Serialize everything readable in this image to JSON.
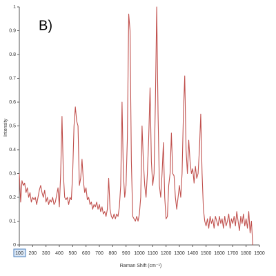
{
  "chart_data": {
    "type": "line",
    "annotation": "B)",
    "x_label": "Raman Shift (cm⁻¹)",
    "y_label": "Intensity",
    "x": [
      100,
      110,
      120,
      130,
      140,
      150,
      160,
      170,
      180,
      190,
      200,
      210,
      220,
      230,
      240,
      250,
      260,
      270,
      280,
      290,
      300,
      310,
      320,
      330,
      340,
      350,
      360,
      370,
      380,
      390,
      400,
      410,
      420,
      430,
      440,
      450,
      460,
      470,
      480,
      490,
      500,
      510,
      520,
      530,
      540,
      550,
      560,
      570,
      580,
      590,
      600,
      610,
      620,
      630,
      640,
      650,
      660,
      670,
      680,
      690,
      700,
      710,
      720,
      730,
      740,
      750,
      760,
      770,
      780,
      790,
      800,
      810,
      820,
      830,
      840,
      850,
      860,
      870,
      880,
      890,
      900,
      910,
      920,
      930,
      940,
      950,
      960,
      970,
      980,
      990,
      1000,
      1010,
      1020,
      1030,
      1040,
      1050,
      1060,
      1070,
      1080,
      1090,
      1100,
      1110,
      1120,
      1130,
      1140,
      1150,
      1160,
      1170,
      1180,
      1190,
      1200,
      1210,
      1220,
      1230,
      1240,
      1250,
      1260,
      1270,
      1280,
      1290,
      1300,
      1310,
      1320,
      1330,
      1340,
      1350,
      1360,
      1370,
      1380,
      1390,
      1400,
      1410,
      1420,
      1430,
      1440,
      1450,
      1460,
      1470,
      1480,
      1490,
      1500,
      1510,
      1520,
      1530,
      1540,
      1550,
      1560,
      1570,
      1580,
      1590,
      1600,
      1610,
      1620,
      1630,
      1640,
      1650,
      1660,
      1670,
      1680,
      1690,
      1700,
      1710,
      1720,
      1730,
      1740,
      1750,
      1760,
      1770,
      1780,
      1790,
      1800,
      1810,
      1820,
      1830,
      1840,
      1850
    ],
    "series": [
      {
        "color": "#c0504d",
        "values": [
          0.3,
          0.18,
          0.27,
          0.25,
          0.26,
          0.22,
          0.24,
          0.2,
          0.22,
          0.18,
          0.2,
          0.19,
          0.2,
          0.17,
          0.2,
          0.23,
          0.25,
          0.22,
          0.2,
          0.23,
          0.18,
          0.2,
          0.17,
          0.19,
          0.18,
          0.2,
          0.17,
          0.18,
          0.21,
          0.24,
          0.16,
          0.3,
          0.54,
          0.3,
          0.2,
          0.19,
          0.2,
          0.17,
          0.2,
          0.19,
          0.3,
          0.5,
          0.58,
          0.52,
          0.5,
          0.25,
          0.28,
          0.36,
          0.27,
          0.22,
          0.24,
          0.19,
          0.2,
          0.17,
          0.18,
          0.15,
          0.17,
          0.16,
          0.18,
          0.15,
          0.17,
          0.14,
          0.16,
          0.13,
          0.14,
          0.12,
          0.15,
          0.28,
          0.15,
          0.12,
          0.11,
          0.13,
          0.11,
          0.13,
          0.12,
          0.16,
          0.25,
          0.6,
          0.3,
          0.2,
          0.25,
          0.45,
          0.97,
          0.9,
          0.35,
          0.12,
          0.11,
          0.1,
          0.12,
          0.1,
          0.13,
          0.2,
          0.5,
          0.35,
          0.25,
          0.2,
          0.3,
          0.45,
          0.66,
          0.35,
          0.25,
          0.3,
          0.6,
          1.0,
          0.55,
          0.25,
          0.2,
          0.3,
          0.43,
          0.2,
          0.11,
          0.12,
          0.25,
          0.3,
          0.47,
          0.3,
          0.29,
          0.2,
          0.15,
          0.2,
          0.25,
          0.2,
          0.3,
          0.55,
          0.71,
          0.4,
          0.3,
          0.44,
          0.35,
          0.3,
          0.32,
          0.26,
          0.33,
          0.28,
          0.3,
          0.4,
          0.55,
          0.3,
          0.15,
          0.1,
          0.08,
          0.11,
          0.07,
          0.12,
          0.09,
          0.11,
          0.07,
          0.12,
          0.1,
          0.08,
          0.12,
          0.09,
          0.11,
          0.07,
          0.12,
          0.08,
          0.1,
          0.13,
          0.07,
          0.11,
          0.09,
          0.12,
          0.08,
          0.14,
          0.1,
          0.06,
          0.12,
          0.09,
          0.13,
          0.08,
          0.11,
          0.07,
          0.14,
          0.05,
          0.1,
          0.0
        ]
      }
    ],
    "xlim": [
      100,
      1900
    ],
    "xticks": [
      100,
      200,
      300,
      400,
      500,
      600,
      700,
      800,
      900,
      1000,
      1100,
      1200,
      1300,
      1400,
      1500,
      1600,
      1700,
      1800,
      1900
    ],
    "ylim": [
      0,
      1
    ],
    "yticks": [
      0,
      0.1,
      0.2,
      0.3,
      0.4,
      0.5,
      0.6,
      0.7,
      0.8,
      0.9,
      1
    ]
  }
}
